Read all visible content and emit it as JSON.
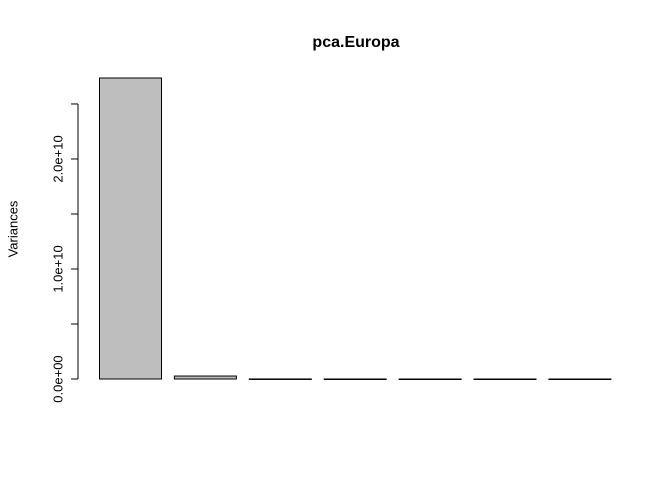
{
  "chart_data": {
    "type": "bar",
    "title": "pca.Europa",
    "y_label": "Variances",
    "categories": [
      null,
      null,
      null,
      null,
      null,
      null,
      null
    ],
    "values": [
      27360000000,
      270000000,
      5000000,
      1000000,
      0,
      0,
      0
    ],
    "color": "#bebebe",
    "ylim": [
      0,
      27360000000
    ],
    "yticks": [
      {
        "value": 0,
        "label": "0.0e+00"
      },
      {
        "value": 10000000000,
        "label": "1.0e+10"
      },
      {
        "value": 20000000000,
        "label": "2.0e+10"
      }
    ],
    "yminorticks": [
      5000000000,
      15000000000,
      25000000000
    ],
    "grid": false
  }
}
